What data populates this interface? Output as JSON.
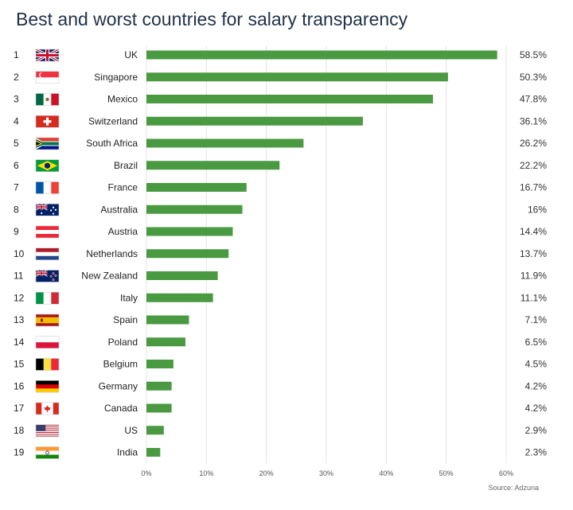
{
  "chart_data": {
    "type": "bar",
    "orientation": "horizontal",
    "title": "Best and worst countries for salary transparency",
    "xlabel": "",
    "ylabel": "",
    "xlim": [
      0,
      60
    ],
    "x_ticks": [
      "0%",
      "10%",
      "20%",
      "30%",
      "40%",
      "50%",
      "60%"
    ],
    "grid": true,
    "bar_color": "#4a9a42",
    "source": "Source: Adzuna",
    "rows": [
      {
        "rank": "1",
        "country": "UK",
        "value": 58.5,
        "label": "58.5%",
        "flag": "uk-flag"
      },
      {
        "rank": "2",
        "country": "Singapore",
        "value": 50.3,
        "label": "50.3%",
        "flag": "singapore-flag"
      },
      {
        "rank": "3",
        "country": "Mexico",
        "value": 47.8,
        "label": "47.8%",
        "flag": "mexico-flag"
      },
      {
        "rank": "4",
        "country": "Switzerland",
        "value": 36.1,
        "label": "36.1%",
        "flag": "switzerland-flag"
      },
      {
        "rank": "5",
        "country": "South Africa",
        "value": 26.2,
        "label": "26.2%",
        "flag": "south-africa-flag"
      },
      {
        "rank": "6",
        "country": "Brazil",
        "value": 22.2,
        "label": "22.2%",
        "flag": "brazil-flag"
      },
      {
        "rank": "7",
        "country": "France",
        "value": 16.7,
        "label": "16.7%",
        "flag": "france-flag"
      },
      {
        "rank": "8",
        "country": "Australia",
        "value": 16,
        "label": "16%",
        "flag": "australia-flag"
      },
      {
        "rank": "9",
        "country": "Austria",
        "value": 14.4,
        "label": "14.4%",
        "flag": "austria-flag"
      },
      {
        "rank": "10",
        "country": "Netherlands",
        "value": 13.7,
        "label": "13.7%",
        "flag": "netherlands-flag"
      },
      {
        "rank": "11",
        "country": "New Zealand",
        "value": 11.9,
        "label": "11.9%",
        "flag": "new-zealand-flag"
      },
      {
        "rank": "12",
        "country": "Italy",
        "value": 11.1,
        "label": "11.1%",
        "flag": "italy-flag"
      },
      {
        "rank": "13",
        "country": "Spain",
        "value": 7.1,
        "label": "7.1%",
        "flag": "spain-flag"
      },
      {
        "rank": "14",
        "country": "Poland",
        "value": 6.5,
        "label": "6.5%",
        "flag": "poland-flag"
      },
      {
        "rank": "15",
        "country": "Belgium",
        "value": 4.5,
        "label": "4.5%",
        "flag": "belgium-flag"
      },
      {
        "rank": "16",
        "country": "Germany",
        "value": 4.2,
        "label": "4.2%",
        "flag": "germany-flag"
      },
      {
        "rank": "17",
        "country": "Canada",
        "value": 4.2,
        "label": "4.2%",
        "flag": "canada-flag"
      },
      {
        "rank": "18",
        "country": "US",
        "value": 2.9,
        "label": "2.9%",
        "flag": "us-flag"
      },
      {
        "rank": "19",
        "country": "India",
        "value": 2.3,
        "label": "2.3%",
        "flag": "india-flag"
      }
    ]
  }
}
